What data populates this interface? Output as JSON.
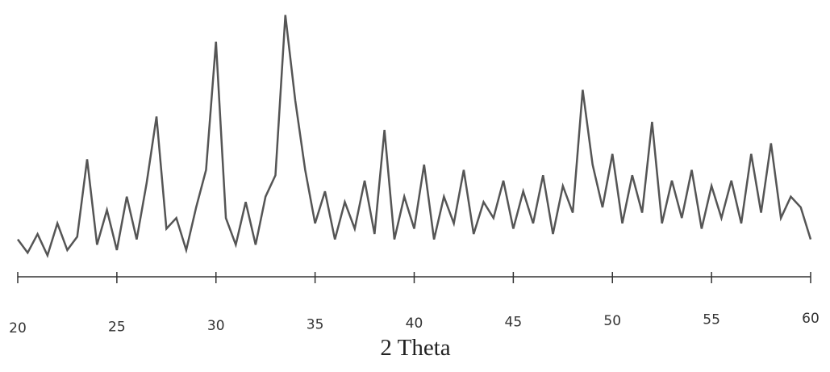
{
  "chart_data": {
    "type": "line",
    "x_label": "2 Theta",
    "x": [
      20,
      20.5,
      21,
      21.5,
      22,
      22.5,
      23,
      23.5,
      24,
      24.5,
      25,
      25.5,
      26,
      26.5,
      27,
      27.5,
      28,
      28.5,
      29,
      29.5,
      30,
      30.5,
      31,
      31.5,
      32,
      32.5,
      33,
      33.5,
      34,
      34.5,
      35,
      35.5,
      36,
      36.5,
      37,
      37.5,
      38,
      38.5,
      39,
      39.5,
      40,
      40.5,
      41,
      41.5,
      42,
      42.5,
      43,
      43.5,
      44,
      44.5,
      45,
      45.5,
      46,
      46.5,
      47,
      47.5,
      48,
      48.5,
      49,
      49.5,
      50,
      50.5,
      51,
      51.5,
      52,
      52.5,
      53,
      53.5,
      54,
      54.5,
      55,
      55.5,
      56,
      56.5,
      57,
      57.5,
      58,
      58.5,
      59,
      59.5,
      60
    ],
    "values": [
      14,
      9,
      16,
      8,
      20,
      10,
      15,
      44,
      12,
      25,
      10,
      30,
      14,
      35,
      60,
      18,
      22,
      10,
      26,
      40,
      88,
      22,
      12,
      28,
      12,
      30,
      38,
      98,
      66,
      40,
      20,
      32,
      14,
      28,
      18,
      36,
      16,
      55,
      14,
      30,
      18,
      42,
      14,
      30,
      20,
      40,
      16,
      28,
      22,
      36,
      18,
      32,
      20,
      38,
      16,
      34,
      24,
      70,
      42,
      26,
      46,
      20,
      38,
      24,
      58,
      20,
      36,
      22,
      40,
      18,
      34,
      22,
      36,
      20,
      46,
      24,
      50,
      22,
      30,
      26,
      14
    ],
    "color": "#555555",
    "xlim": [
      20,
      60
    ],
    "xticks": [
      20,
      25,
      30,
      35,
      40,
      45,
      50,
      55,
      60
    ],
    "ylim": [
      0,
      100
    ]
  }
}
